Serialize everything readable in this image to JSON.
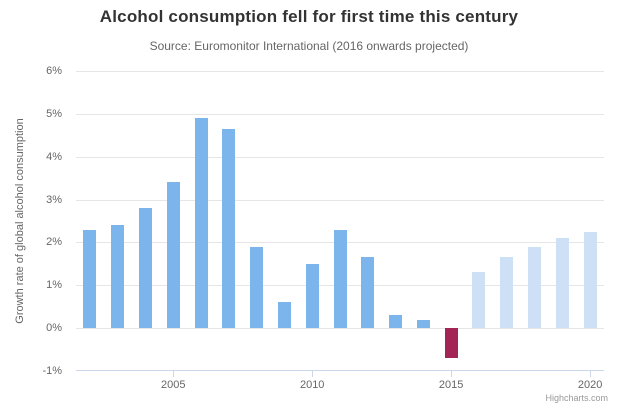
{
  "chart": {
    "credit": "Highcharts.com"
  },
  "chart_data": {
    "type": "bar",
    "title": "Alcohol consumption fell for first time this century",
    "subtitle": "Source: Euromonitor International (2016 onwards projected)",
    "ylabel": "Growth rate of global alcohol consumption",
    "xlabel": "",
    "ylim": [
      -1,
      6
    ],
    "ytick_step": 1,
    "ytick_suffix": "%",
    "grid": true,
    "legend_position": "none",
    "x_ticks_labeled": [
      2005,
      2010,
      2015,
      2020
    ],
    "categories": [
      2002,
      2003,
      2004,
      2005,
      2006,
      2007,
      2008,
      2009,
      2010,
      2011,
      2012,
      2013,
      2014,
      2015,
      2016,
      2017,
      2018,
      2019,
      2020
    ],
    "series": [
      {
        "name": "Growth rate of global alcohol consumption",
        "points": [
          {
            "year": 2002,
            "value": 2.3,
            "status": "actual"
          },
          {
            "year": 2003,
            "value": 2.4,
            "status": "actual"
          },
          {
            "year": 2004,
            "value": 2.8,
            "status": "actual"
          },
          {
            "year": 2005,
            "value": 3.4,
            "status": "actual"
          },
          {
            "year": 2006,
            "value": 4.9,
            "status": "actual"
          },
          {
            "year": 2007,
            "value": 4.65,
            "status": "actual"
          },
          {
            "year": 2008,
            "value": 1.9,
            "status": "actual"
          },
          {
            "year": 2009,
            "value": 0.6,
            "status": "actual"
          },
          {
            "year": 2010,
            "value": 1.5,
            "status": "actual"
          },
          {
            "year": 2011,
            "value": 2.3,
            "status": "actual"
          },
          {
            "year": 2012,
            "value": 1.65,
            "status": "actual"
          },
          {
            "year": 2013,
            "value": 0.3,
            "status": "actual"
          },
          {
            "year": 2014,
            "value": 0.2,
            "status": "actual"
          },
          {
            "year": 2015,
            "value": -0.7,
            "status": "decline"
          },
          {
            "year": 2016,
            "value": 1.3,
            "status": "projected"
          },
          {
            "year": 2017,
            "value": 1.65,
            "status": "projected"
          },
          {
            "year": 2018,
            "value": 1.9,
            "status": "projected"
          },
          {
            "year": 2019,
            "value": 2.1,
            "status": "projected"
          },
          {
            "year": 2020,
            "value": 2.25,
            "status": "projected"
          }
        ]
      }
    ],
    "colors": {
      "actual": "#7cb5ec",
      "decline": "#a32556",
      "projected": "#cde0f6"
    },
    "axis_colors": {
      "grid": "#e6e6e6",
      "axis_line": "#ccd6eb",
      "labels": "#666666"
    }
  }
}
